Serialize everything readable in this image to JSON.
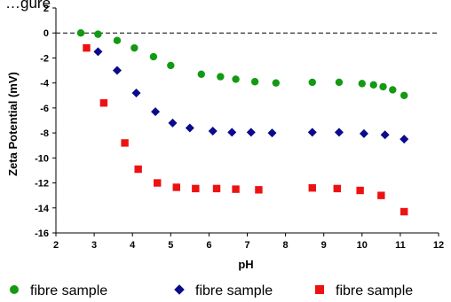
{
  "title_fragment": "…gure",
  "colors": {
    "green": "#139a13",
    "blue": "#0a0a8c",
    "red": "#ee1111"
  },
  "chart_data": {
    "type": "scatter",
    "xlabel": "pH",
    "ylabel": "Zeta Potential (mV)",
    "xlim": [
      2,
      12
    ],
    "ylim": [
      -16,
      2
    ],
    "x_ticks": [
      2,
      3,
      4,
      5,
      6,
      7,
      8,
      9,
      10,
      11,
      12
    ],
    "y_ticks": [
      2,
      0,
      -2,
      -4,
      -6,
      -8,
      -10,
      -12,
      -14,
      -16
    ],
    "reference_line": {
      "y": 0,
      "style": "dashed"
    },
    "grid": false,
    "legend_position": "bottom",
    "series": [
      {
        "name": "fibre sample",
        "marker": "circle",
        "color": "#139a13",
        "x": [
          2.65,
          3.1,
          3.6,
          4.05,
          4.55,
          5.0,
          5.8,
          6.3,
          6.7,
          7.2,
          7.75,
          8.7,
          9.4,
          10.0,
          10.3,
          10.55,
          10.8,
          11.1
        ],
        "y": [
          0.0,
          -0.1,
          -0.6,
          -1.2,
          -1.9,
          -2.6,
          -3.3,
          -3.5,
          -3.7,
          -3.9,
          -4.0,
          -3.95,
          -3.95,
          -4.05,
          -4.15,
          -4.3,
          -4.55,
          -5.0
        ]
      },
      {
        "name": "fibre sample",
        "marker": "diamond",
        "color": "#0a0a8c",
        "x": [
          3.1,
          3.6,
          4.1,
          4.6,
          5.05,
          5.5,
          6.1,
          6.6,
          7.1,
          7.65,
          8.7,
          9.4,
          10.05,
          10.6,
          11.1
        ],
        "y": [
          -1.5,
          -3.0,
          -4.8,
          -6.3,
          -7.2,
          -7.6,
          -7.85,
          -7.95,
          -7.95,
          -8.0,
          -7.95,
          -7.95,
          -8.05,
          -8.15,
          -8.5
        ]
      },
      {
        "name": "fibre sample",
        "marker": "square",
        "color": "#ee1111",
        "x": [
          2.8,
          3.25,
          3.8,
          4.15,
          4.65,
          5.15,
          5.65,
          6.2,
          6.7,
          7.3,
          8.7,
          9.35,
          9.95,
          10.5,
          11.1
        ],
        "y": [
          -1.2,
          -5.6,
          -8.8,
          -10.9,
          -12.0,
          -12.35,
          -12.45,
          -12.45,
          -12.5,
          -12.55,
          -12.4,
          -12.45,
          -12.6,
          -13.0,
          -14.3
        ]
      }
    ]
  }
}
